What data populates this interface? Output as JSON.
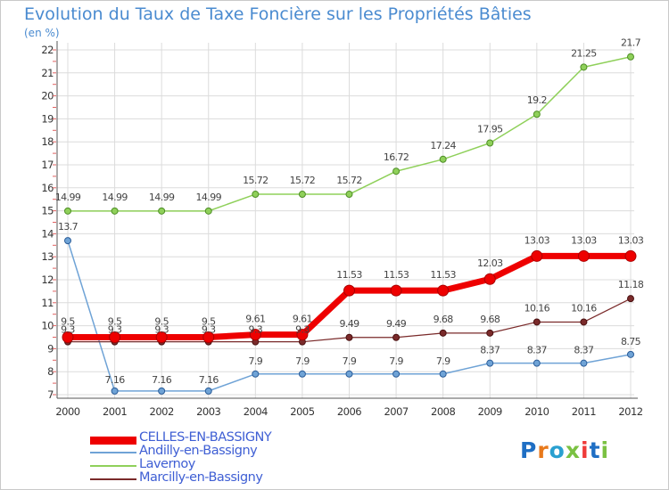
{
  "chart_data": {
    "type": "line",
    "title": "Evolution du Taux de Taxe Foncière sur les Propriétés Bâties",
    "ylabel": "(en %)",
    "xlabel": "",
    "x": [
      "2000",
      "2001",
      "2002",
      "2003",
      "2004",
      "2005",
      "2006",
      "2007",
      "2008",
      "2009",
      "2010",
      "2011",
      "2012"
    ],
    "ylim": [
      7,
      22
    ],
    "yticks": [
      7,
      8,
      9,
      10,
      11,
      12,
      13,
      14,
      15,
      16,
      17,
      18,
      19,
      20,
      21,
      22
    ],
    "grid": true,
    "legend_position": "bottom-left",
    "series": [
      {
        "name": "Lavernoy",
        "color": "#8fd05a",
        "values": [
          14.99,
          14.99,
          14.99,
          14.99,
          15.72,
          15.72,
          15.72,
          16.72,
          17.24,
          17.95,
          19.2,
          21.25,
          21.7
        ],
        "labels": [
          "14.99",
          "14.99",
          "14.99",
          "14.99",
          "15.72",
          "15.72",
          "15.72",
          "16.72",
          "17.24",
          "17.95",
          "19.2",
          "21.25",
          "21.7"
        ]
      },
      {
        "name": "Andilly-en-Bassigny",
        "color": "#6fa3d6",
        "values": [
          13.7,
          7.16,
          7.16,
          7.16,
          7.9,
          7.9,
          7.9,
          7.9,
          7.9,
          8.37,
          8.37,
          8.37,
          8.75
        ],
        "labels": [
          "13.7",
          "7.16",
          "7.16",
          "7.16",
          "7.9",
          "7.9",
          "7.9",
          "7.9",
          "7.9",
          "8.37",
          "8.37",
          "8.37",
          "8.75"
        ]
      },
      {
        "name": "Marcilly-en-Bassigny",
        "color": "#7a2a2a",
        "values": [
          9.3,
          9.3,
          9.3,
          9.3,
          9.3,
          9.3,
          9.49,
          9.49,
          9.68,
          9.68,
          10.16,
          10.16,
          11.18
        ],
        "labels": [
          "9.3",
          "9.3",
          "9.3",
          "9.3",
          "9.3",
          "9.3",
          "9.49",
          "9.49",
          "9.68",
          "9.68",
          "10.16",
          "10.16",
          "11.18"
        ]
      },
      {
        "name": "CELLES-EN-BASSIGNY",
        "color": "#ee0000",
        "values": [
          9.5,
          9.5,
          9.5,
          9.5,
          9.61,
          9.61,
          11.53,
          11.53,
          11.53,
          12.03,
          13.03,
          13.03,
          13.03
        ],
        "labels": [
          "9.5",
          "9.5",
          "9.5",
          "9.5",
          "9.61",
          "9.61",
          "11.53",
          "11.53",
          "11.53",
          "12.03",
          "13.03",
          "13.03",
          "13.03"
        ]
      }
    ],
    "legend": [
      "CELLES-EN-BASSIGNY",
      "Andilly-en-Bassigny",
      "Lavernoy",
      "Marcilly-en-Bassigny"
    ]
  },
  "logo": {
    "text": "Proxiti",
    "letter_colors": [
      "#1f6fc4",
      "#e8791b",
      "#2aa0d0",
      "#7ac142",
      "#ef3b39",
      "#1f6fc4",
      "#7ac142"
    ]
  }
}
